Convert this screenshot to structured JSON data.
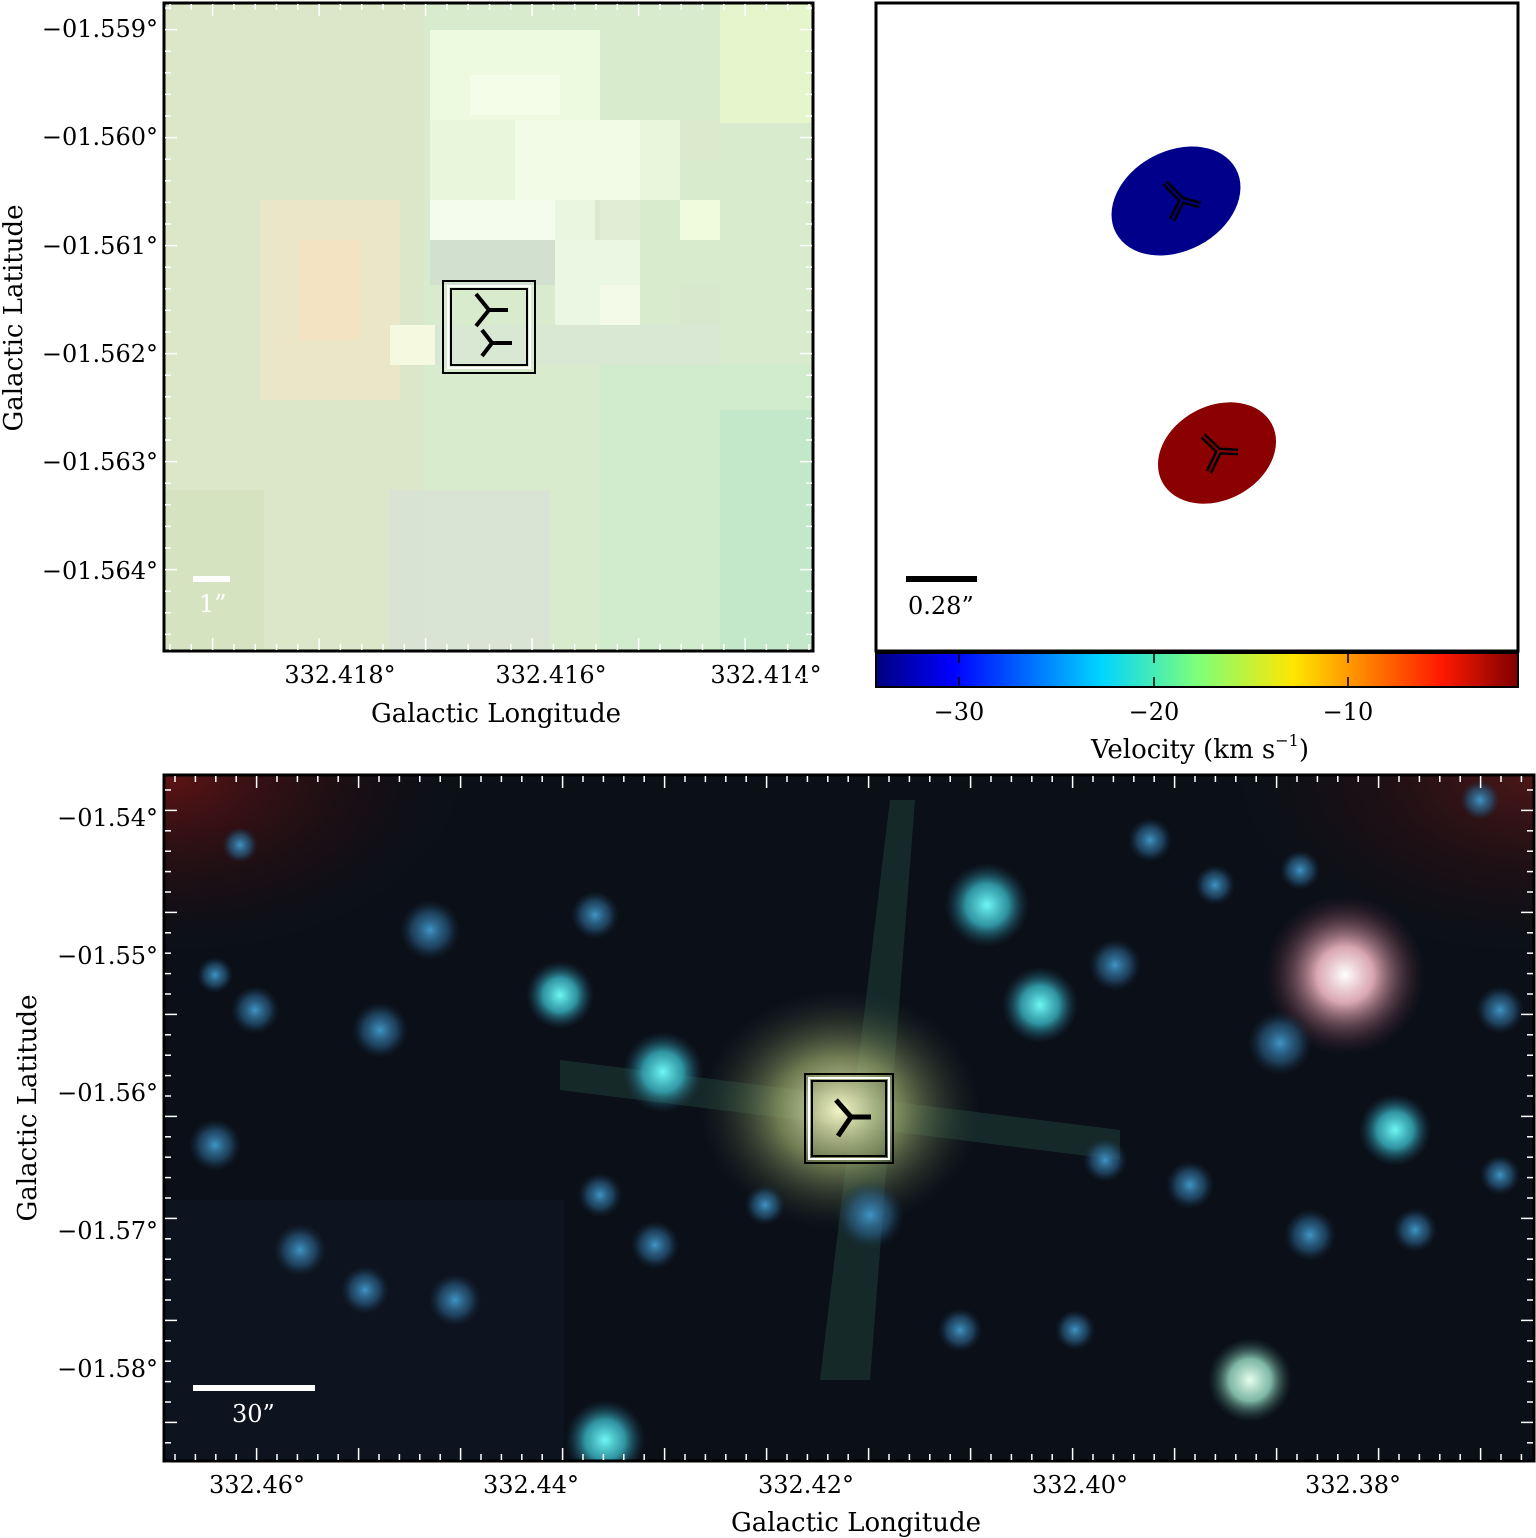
{
  "panels": {
    "top_left": {
      "x_ticks": [
        "332.418°",
        "332.416°",
        "332.414°"
      ],
      "y_ticks": [
        "−01.559°",
        "−01.560°",
        "−01.561°",
        "−01.562°",
        "−01.563°",
        "−01.564°"
      ],
      "xlabel": "Galactic Longitude",
      "ylabel": "Galactic Latitude",
      "scale_bar_label": "1”"
    },
    "top_right": {
      "scale_bar_label": "0.28”",
      "colorbar": {
        "ticks": [
          "−30",
          "−20",
          "−10"
        ],
        "label_main": "Velocity (km s",
        "label_sup": "−1",
        "label_close": ")"
      },
      "sources": [
        {
          "name": "blue-shifted",
          "velocity_km_s": -33,
          "color": "#00008b"
        },
        {
          "name": "red-shifted",
          "velocity_km_s": -4,
          "color": "#8b0000"
        }
      ]
    },
    "bottom": {
      "x_ticks": [
        "332.46°",
        "332.44°",
        "332.42°",
        "332.40°",
        "332.38°"
      ],
      "y_ticks": [
        "−01.54°",
        "−01.55°",
        "−01.56°",
        "−01.57°",
        "−01.58°"
      ],
      "xlabel": "Galactic Longitude",
      "ylabel": "Galactic Latitude",
      "scale_bar_label": "30”"
    }
  },
  "colors": {
    "tl_background": "#d8eccf",
    "bottom_background": "#0a0f16",
    "star_cyan": "#5ef2f0",
    "star_blue": "#3a86b8",
    "pink_star": "#f0b4c0"
  }
}
